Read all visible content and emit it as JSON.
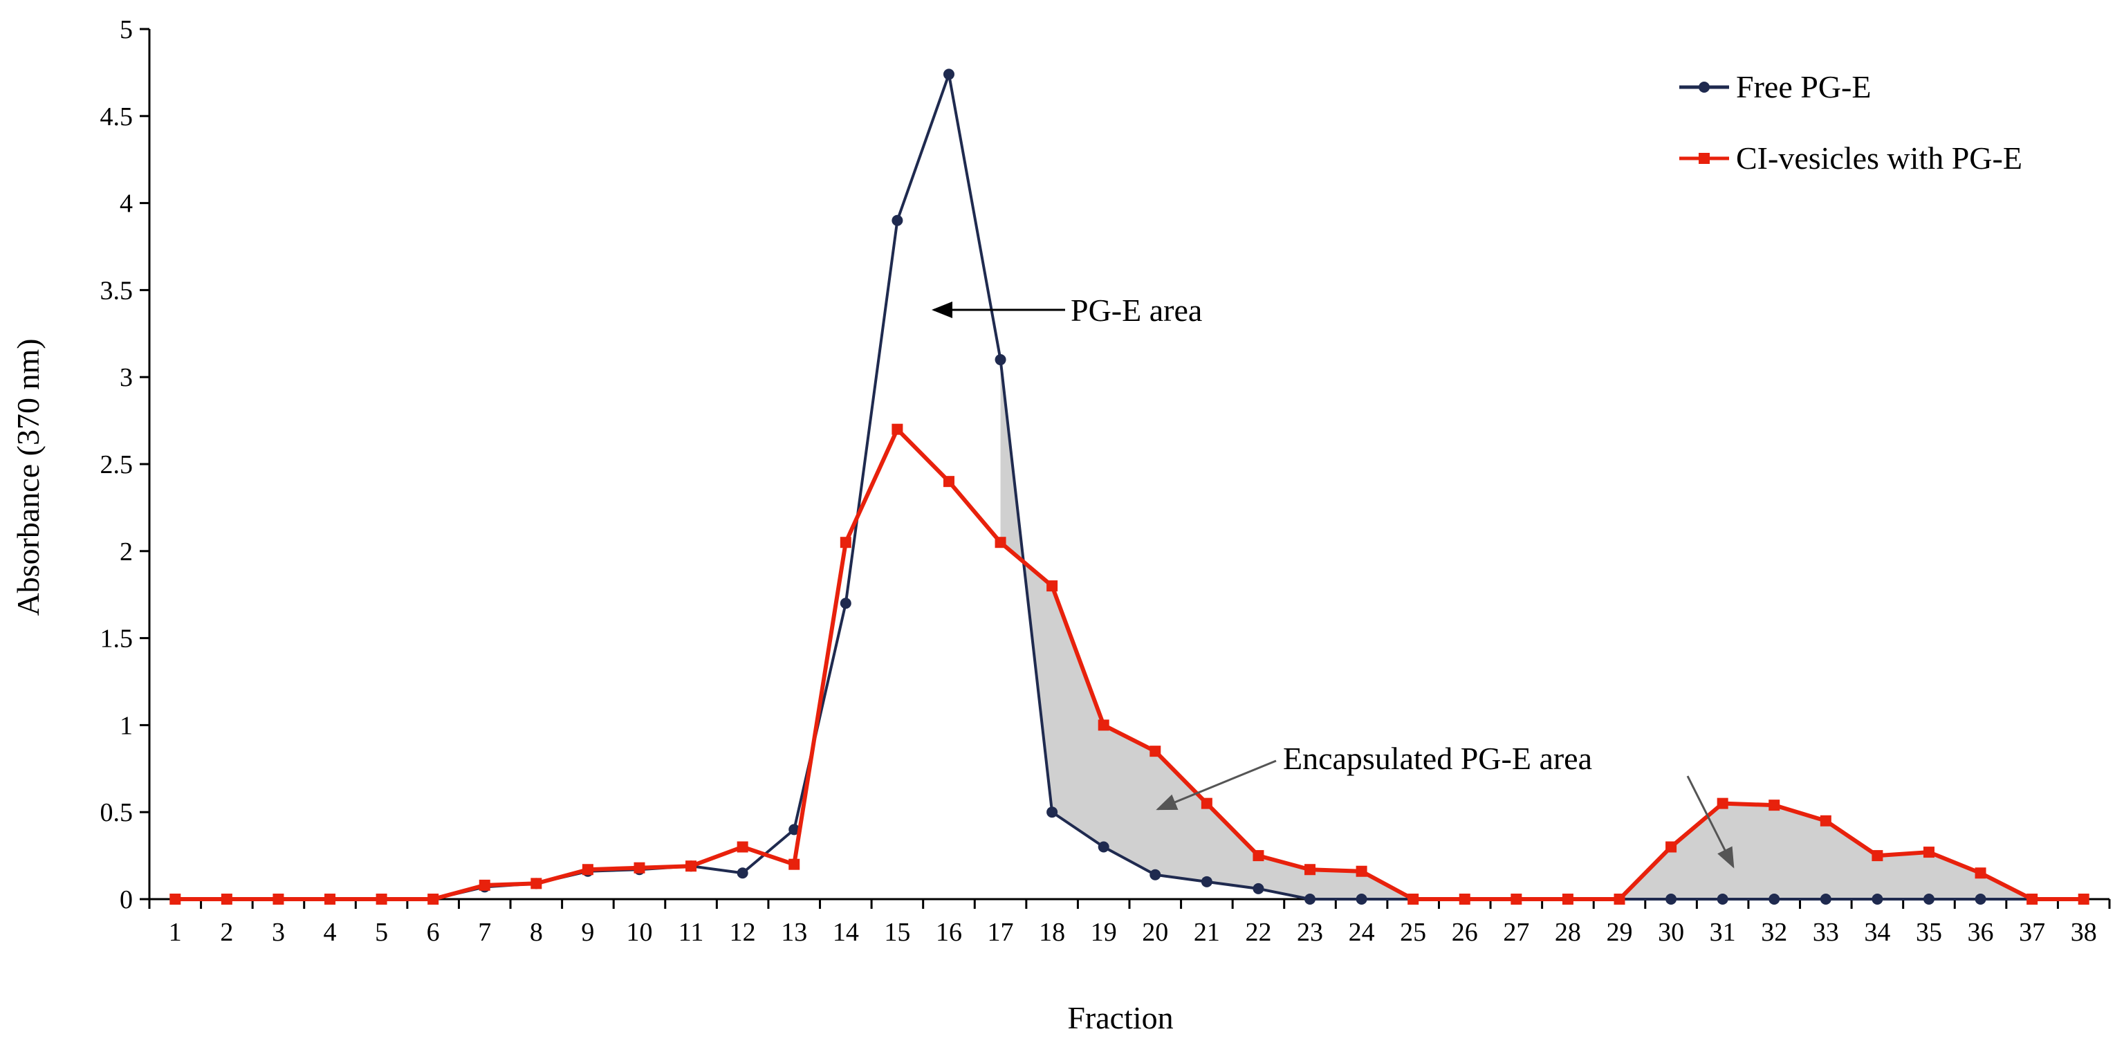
{
  "chart_data": {
    "type": "line",
    "title": "",
    "xlabel": "Fraction",
    "ylabel": "Absorbance (370 nm)",
    "x": [
      1,
      2,
      3,
      4,
      5,
      6,
      7,
      8,
      9,
      10,
      11,
      12,
      13,
      14,
      15,
      16,
      17,
      18,
      19,
      20,
      21,
      22,
      23,
      24,
      25,
      26,
      27,
      28,
      29,
      30,
      31,
      32,
      33,
      34,
      35,
      36,
      37,
      38
    ],
    "xticks": [
      "1",
      "2",
      "3",
      "4",
      "5",
      "6",
      "7",
      "8",
      "9",
      "10",
      "11",
      "12",
      "13",
      "14",
      "15",
      "16",
      "17",
      "18",
      "19",
      "20",
      "21",
      "22",
      "23",
      "24",
      "25",
      "26",
      "27",
      "28",
      "29",
      "30",
      "31",
      "32",
      "33",
      "34",
      "35",
      "36",
      "37",
      "38"
    ],
    "ylim": [
      0,
      5
    ],
    "yticks": [
      {
        "value": 0,
        "label": "0"
      },
      {
        "value": 0.5,
        "label": "0.5"
      },
      {
        "value": 1,
        "label": "1"
      },
      {
        "value": 1.5,
        "label": "1.5"
      },
      {
        "value": 2,
        "label": "2"
      },
      {
        "value": 2.5,
        "label": "2.5"
      },
      {
        "value": 3,
        "label": "3"
      },
      {
        "value": 3.5,
        "label": "3.5"
      },
      {
        "value": 4,
        "label": "4"
      },
      {
        "value": 4.5,
        "label": "4.5"
      },
      {
        "value": 5,
        "label": "5"
      }
    ],
    "grid": false,
    "legend_position": "top-right",
    "series": [
      {
        "name": "Free PG-E",
        "color": "#1f2a4f",
        "marker": "circle",
        "values": [
          0,
          0,
          0,
          0,
          0,
          0,
          0.07,
          0.09,
          0.16,
          0.17,
          0.19,
          0.15,
          0.4,
          1.7,
          3.9,
          4.74,
          3.1,
          0.5,
          0.3,
          0.14,
          0.1,
          0.06,
          0,
          0,
          0,
          0,
          0,
          0,
          0,
          0,
          0,
          0,
          0,
          0,
          0,
          0,
          0,
          0
        ]
      },
      {
        "name": "CI-vesicles with PG-E",
        "color": "#e8210c",
        "marker": "square",
        "values": [
          0,
          0,
          0,
          0,
          0,
          0,
          0.08,
          0.09,
          0.17,
          0.18,
          0.19,
          0.3,
          0.2,
          2.05,
          2.7,
          2.4,
          2.05,
          1.8,
          1.0,
          0.85,
          0.55,
          0.25,
          0.17,
          0.16,
          0,
          0,
          0,
          0,
          0,
          0.3,
          0.55,
          0.54,
          0.45,
          0.25,
          0.27,
          0.15,
          0,
          0
        ]
      }
    ],
    "shaded_regions": [
      {
        "from": 17,
        "to": 25,
        "color": "#d0d0d0"
      },
      {
        "from": 29,
        "to": 37,
        "color": "#d0d0d0"
      }
    ],
    "annotations": [
      {
        "text": "PG-E area",
        "arrow_to": [
          15.8,
          3.4
        ]
      },
      {
        "text": "Encapsulated PG-E area",
        "arrow_to": [
          [
            20.0,
            0.5
          ],
          [
            31.0,
            0.18
          ]
        ]
      }
    ]
  }
}
